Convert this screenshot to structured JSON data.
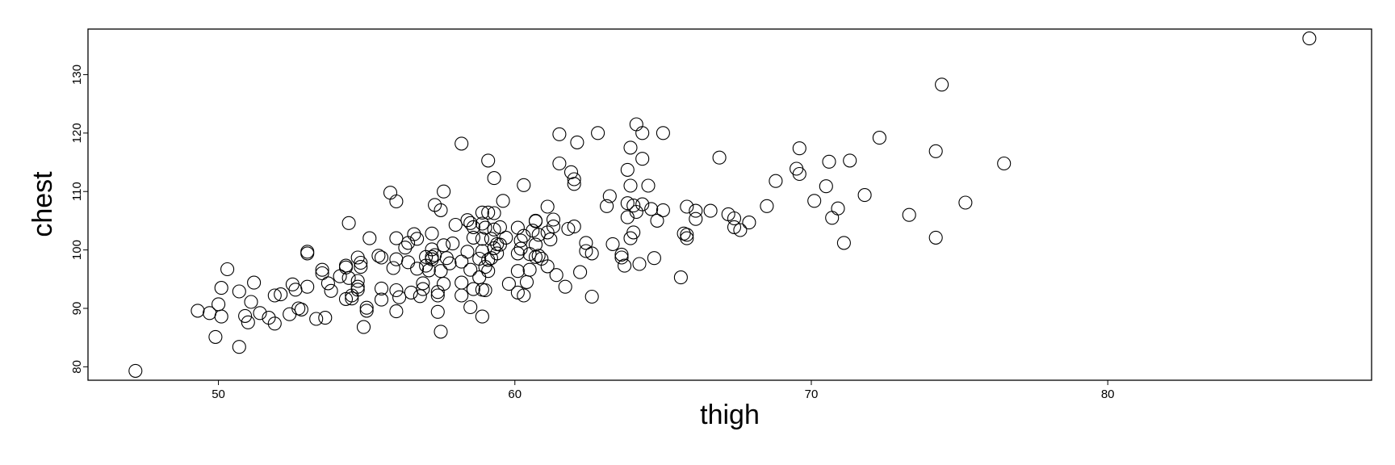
{
  "chart_data": {
    "type": "scatter",
    "title": "",
    "xlabel": "thigh",
    "ylabel": "chest",
    "xlim": [
      45.6,
      88.9
    ],
    "ylim": [
      77.7,
      137.8
    ],
    "xticks": [
      50,
      60,
      70,
      80
    ],
    "yticks": [
      80,
      90,
      100,
      110,
      120,
      130
    ],
    "grid": false,
    "legend": "none",
    "marker": "open-circle",
    "series": [
      {
        "points": [
          [
            47.2,
            79.3
          ],
          [
            49.3,
            89.6
          ],
          [
            49.7,
            89.2
          ],
          [
            50.0,
            90.7
          ],
          [
            50.1,
            93.5
          ],
          [
            50.1,
            88.6
          ],
          [
            49.9,
            85.1
          ],
          [
            50.3,
            96.7
          ],
          [
            50.7,
            83.4
          ],
          [
            50.7,
            92.9
          ],
          [
            50.9,
            88.7
          ],
          [
            51.0,
            87.6
          ],
          [
            51.1,
            91.1
          ],
          [
            51.2,
            94.4
          ],
          [
            51.4,
            89.2
          ],
          [
            51.7,
            88.4
          ],
          [
            51.9,
            92.2
          ],
          [
            51.9,
            87.4
          ],
          [
            52.1,
            92.4
          ],
          [
            52.4,
            89.0
          ],
          [
            52.5,
            94.1
          ],
          [
            52.6,
            93.2
          ],
          [
            52.7,
            90.0
          ],
          [
            52.8,
            89.8
          ],
          [
            53.0,
            93.7
          ],
          [
            53.0,
            99.7
          ],
          [
            53.0,
            99.4
          ],
          [
            53.3,
            88.2
          ],
          [
            53.5,
            96.0
          ],
          [
            53.5,
            96.6
          ],
          [
            53.6,
            88.4
          ],
          [
            53.7,
            94.3
          ],
          [
            53.8,
            93.0
          ],
          [
            54.1,
            95.5
          ],
          [
            54.3,
            97.3
          ],
          [
            54.3,
            97.0
          ],
          [
            54.3,
            91.6
          ],
          [
            54.4,
            95.2
          ],
          [
            54.4,
            104.6
          ],
          [
            54.5,
            92.2
          ],
          [
            54.5,
            91.7
          ],
          [
            54.7,
            93.7
          ],
          [
            54.7,
            93.2
          ],
          [
            54.7,
            98.7
          ],
          [
            54.8,
            97.8
          ],
          [
            54.8,
            97.1
          ],
          [
            54.7,
            94.7
          ],
          [
            54.9,
            86.8
          ],
          [
            55.0,
            90.1
          ],
          [
            55.0,
            89.6
          ],
          [
            55.1,
            102.0
          ],
          [
            55.4,
            99.0
          ],
          [
            55.5,
            98.7
          ],
          [
            55.5,
            93.4
          ],
          [
            55.5,
            91.5
          ],
          [
            55.8,
            109.8
          ],
          [
            55.9,
            96.9
          ],
          [
            56.0,
            102.0
          ],
          [
            56.0,
            98.4
          ],
          [
            56.0,
            108.3
          ],
          [
            56.0,
            89.5
          ],
          [
            56.0,
            93.1
          ],
          [
            56.1,
            91.9
          ],
          [
            56.3,
            100.4
          ],
          [
            56.4,
            97.9
          ],
          [
            56.4,
            101.2
          ],
          [
            56.5,
            92.7
          ],
          [
            56.6,
            102.7
          ],
          [
            56.7,
            101.9
          ],
          [
            56.7,
            96.8
          ],
          [
            56.8,
            92.1
          ],
          [
            56.9,
            93.3
          ],
          [
            56.9,
            94.3
          ],
          [
            57.0,
            98.8
          ],
          [
            57.0,
            97.3
          ],
          [
            57.1,
            96.5
          ],
          [
            57.2,
            100.1
          ],
          [
            57.2,
            98.4
          ],
          [
            57.2,
            102.8
          ],
          [
            57.2,
            98.8
          ],
          [
            57.3,
            107.7
          ],
          [
            57.3,
            99.1
          ],
          [
            57.4,
            89.4
          ],
          [
            57.4,
            92.2
          ],
          [
            57.5,
            86.0
          ],
          [
            57.4,
            92.8
          ],
          [
            57.5,
            106.8
          ],
          [
            57.5,
            96.4
          ],
          [
            57.6,
            94.2
          ],
          [
            57.6,
            100.8
          ],
          [
            57.6,
            110.0
          ],
          [
            57.7,
            98.6
          ],
          [
            57.8,
            97.7
          ],
          [
            57.9,
            101.1
          ],
          [
            58.0,
            104.3
          ],
          [
            58.2,
            92.2
          ],
          [
            58.2,
            98.0
          ],
          [
            58.2,
            94.4
          ],
          [
            58.2,
            118.2
          ],
          [
            58.4,
            99.7
          ],
          [
            58.4,
            105.1
          ],
          [
            58.5,
            96.6
          ],
          [
            58.5,
            90.2
          ],
          [
            58.5,
            104.6
          ],
          [
            58.6,
            102.1
          ],
          [
            58.6,
            103.9
          ],
          [
            58.6,
            93.3
          ],
          [
            58.8,
            98.5
          ],
          [
            58.8,
            95.3
          ],
          [
            58.9,
            93.2
          ],
          [
            58.9,
            101.9
          ],
          [
            58.9,
            99.8
          ],
          [
            58.9,
            104.5
          ],
          [
            58.9,
            106.4
          ],
          [
            58.9,
            88.6
          ],
          [
            59.0,
            103.8
          ],
          [
            59.0,
            93.1
          ],
          [
            59.1,
            106.4
          ],
          [
            59.0,
            97.1
          ],
          [
            59.1,
            96.4
          ],
          [
            59.1,
            115.3
          ],
          [
            59.1,
            98.3
          ],
          [
            59.2,
            101.9
          ],
          [
            59.2,
            98.6
          ],
          [
            59.3,
            106.3
          ],
          [
            59.3,
            103.5
          ],
          [
            59.3,
            112.3
          ],
          [
            59.3,
            100.3
          ],
          [
            59.4,
            99.4
          ],
          [
            59.4,
            101.0
          ],
          [
            59.5,
            100.9
          ],
          [
            59.5,
            103.9
          ],
          [
            59.6,
            108.4
          ],
          [
            59.7,
            102.1
          ],
          [
            59.8,
            94.2
          ],
          [
            60.1,
            92.7
          ],
          [
            60.1,
            103.8
          ],
          [
            60.1,
            96.4
          ],
          [
            60.1,
            99.4
          ],
          [
            60.2,
            101.6
          ],
          [
            60.2,
            100.2
          ],
          [
            60.3,
            92.2
          ],
          [
            60.3,
            102.4
          ],
          [
            60.3,
            111.1
          ],
          [
            60.4,
            94.5
          ],
          [
            60.5,
            96.6
          ],
          [
            60.5,
            99.3
          ],
          [
            60.6,
            103.3
          ],
          [
            60.7,
            104.9
          ],
          [
            60.7,
            98.8
          ],
          [
            60.7,
            105.0
          ],
          [
            60.7,
            100.9
          ],
          [
            60.8,
            102.6
          ],
          [
            60.8,
            99.0
          ],
          [
            60.9,
            98.5
          ],
          [
            61.1,
            97.2
          ],
          [
            61.1,
            103.0
          ],
          [
            61.1,
            107.4
          ],
          [
            61.2,
            101.8
          ],
          [
            61.3,
            104.0
          ],
          [
            61.3,
            105.2
          ],
          [
            61.4,
            95.7
          ],
          [
            61.5,
            119.8
          ],
          [
            61.5,
            114.8
          ],
          [
            61.7,
            93.7
          ],
          [
            61.8,
            103.6
          ],
          [
            61.9,
            113.3
          ],
          [
            62.0,
            104.0
          ],
          [
            62.0,
            112.1
          ],
          [
            62.0,
            111.3
          ],
          [
            62.1,
            118.4
          ],
          [
            62.2,
            96.2
          ],
          [
            62.4,
            101.2
          ],
          [
            62.4,
            99.8
          ],
          [
            62.6,
            92.0
          ],
          [
            62.6,
            99.4
          ],
          [
            62.8,
            120.0
          ],
          [
            63.1,
            107.5
          ],
          [
            63.2,
            109.2
          ],
          [
            63.3,
            101.0
          ],
          [
            63.6,
            99.2
          ],
          [
            63.6,
            98.7
          ],
          [
            63.7,
            97.3
          ],
          [
            63.8,
            113.7
          ],
          [
            63.8,
            105.6
          ],
          [
            63.8,
            108.0
          ],
          [
            63.9,
            102.0
          ],
          [
            63.9,
            117.5
          ],
          [
            63.9,
            111.0
          ],
          [
            64.0,
            103.0
          ],
          [
            64.0,
            107.6
          ],
          [
            64.1,
            106.5
          ],
          [
            64.1,
            121.5
          ],
          [
            64.2,
            97.6
          ],
          [
            64.3,
            120.0
          ],
          [
            64.3,
            115.6
          ],
          [
            64.3,
            107.8
          ],
          [
            64.5,
            111.0
          ],
          [
            64.6,
            107.0
          ],
          [
            64.7,
            98.6
          ],
          [
            64.8,
            105.0
          ],
          [
            65.0,
            120.0
          ],
          [
            65.0,
            106.8
          ],
          [
            65.6,
            95.3
          ],
          [
            65.7,
            102.8
          ],
          [
            65.8,
            107.4
          ],
          [
            65.8,
            102.0
          ],
          [
            65.8,
            102.6
          ],
          [
            66.1,
            105.3
          ],
          [
            66.1,
            106.7
          ],
          [
            66.6,
            106.7
          ],
          [
            66.9,
            115.8
          ],
          [
            67.2,
            106.1
          ],
          [
            67.4,
            103.9
          ],
          [
            67.4,
            105.4
          ],
          [
            67.6,
            103.4
          ],
          [
            67.9,
            104.7
          ],
          [
            68.5,
            107.5
          ],
          [
            68.8,
            111.8
          ],
          [
            69.5,
            113.9
          ],
          [
            69.6,
            113.0
          ],
          [
            69.6,
            117.4
          ],
          [
            70.1,
            108.4
          ],
          [
            70.5,
            110.9
          ],
          [
            70.6,
            115.1
          ],
          [
            70.7,
            105.5
          ],
          [
            70.9,
            107.1
          ],
          [
            71.1,
            101.2
          ],
          [
            71.3,
            115.3
          ],
          [
            71.8,
            109.4
          ],
          [
            72.3,
            119.2
          ],
          [
            73.3,
            106.0
          ],
          [
            74.2,
            102.1
          ],
          [
            74.2,
            116.9
          ],
          [
            74.4,
            128.3
          ],
          [
            75.2,
            108.1
          ],
          [
            76.5,
            114.8
          ],
          [
            86.8,
            136.2
          ]
        ]
      }
    ]
  }
}
